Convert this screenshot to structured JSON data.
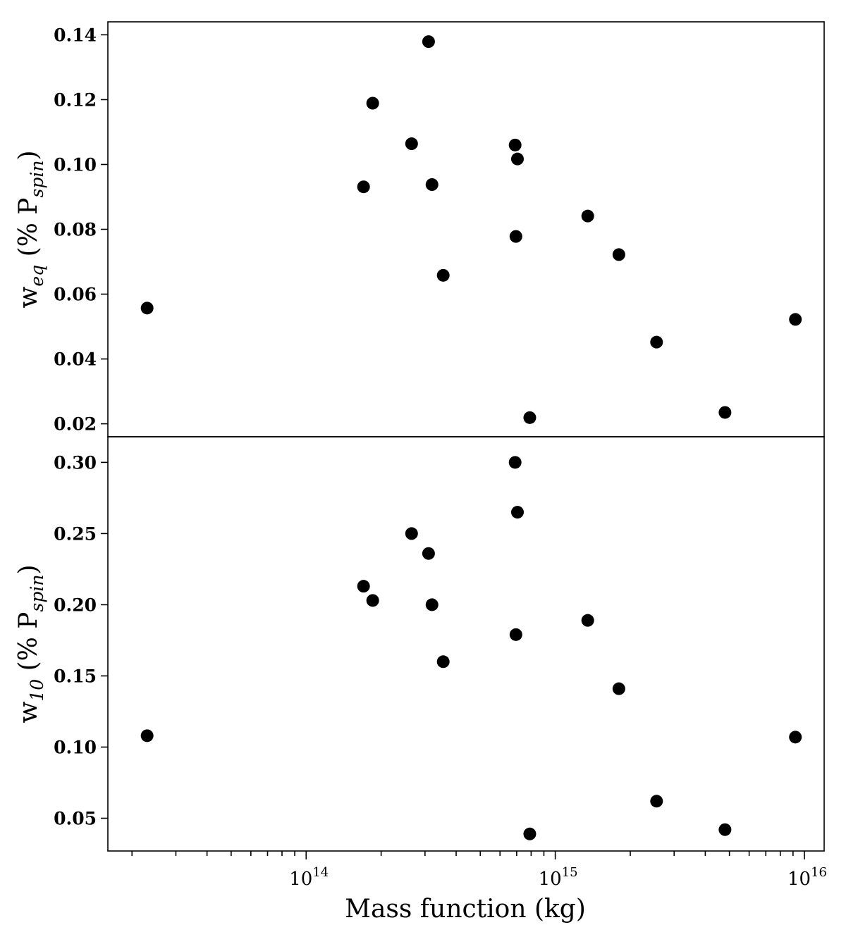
{
  "chart_data": [
    {
      "type": "scatter",
      "panel": "top",
      "title": "",
      "xlabel": "Mass function (kg)",
      "ylabel": {
        "main": "w",
        "sub": "eq",
        "paren_open": " (% P",
        "paren_sub": "spin",
        "paren_close": ")"
      },
      "xscale": "log",
      "xlim": [
        16000000000000.0,
        1.2e+16
      ],
      "ylim": [
        0.016,
        0.144
      ],
      "yticks": [
        0.02,
        0.04,
        0.06,
        0.08,
        0.1,
        0.12,
        0.14
      ],
      "ytick_labels": [
        "0.02",
        "0.04",
        "0.06",
        "0.08",
        "0.10",
        "0.12",
        "0.14"
      ],
      "marker_color": "#000000",
      "grid": false,
      "points": [
        {
          "x": 23000000000000.0,
          "y": 0.0557
        },
        {
          "x": 170000000000000.0,
          "y": 0.0931
        },
        {
          "x": 185000000000000.0,
          "y": 0.1189
        },
        {
          "x": 265000000000000.0,
          "y": 0.1064
        },
        {
          "x": 310000000000000.0,
          "y": 0.1379
        },
        {
          "x": 320000000000000.0,
          "y": 0.0938
        },
        {
          "x": 355000000000000.0,
          "y": 0.0658
        },
        {
          "x": 690000000000000.0,
          "y": 0.106
        },
        {
          "x": 705000000000000.0,
          "y": 0.1017
        },
        {
          "x": 695000000000000.0,
          "y": 0.0778
        },
        {
          "x": 790000000000000.0,
          "y": 0.0219
        },
        {
          "x": 1350000000000000.0,
          "y": 0.0841
        },
        {
          "x": 1800000000000000.0,
          "y": 0.0722
        },
        {
          "x": 2550000000000000.0,
          "y": 0.0452
        },
        {
          "x": 4800000000000000.0,
          "y": 0.0235
        },
        {
          "x": 9200000000000000.0,
          "y": 0.0522
        }
      ]
    },
    {
      "type": "scatter",
      "panel": "bottom",
      "title": "",
      "xlabel": "Mass function (kg)",
      "ylabel": {
        "main": "w",
        "sub": "10",
        "paren_open": " (% P",
        "paren_sub": "spin",
        "paren_close": ")"
      },
      "xscale": "log",
      "xlim": [
        16000000000000.0,
        1.2e+16
      ],
      "ylim": [
        0.027,
        0.318
      ],
      "yticks": [
        0.05,
        0.1,
        0.15,
        0.2,
        0.25,
        0.3
      ],
      "ytick_labels": [
        "0.05",
        "0.10",
        "0.15",
        "0.20",
        "0.25",
        "0.30"
      ],
      "xticks_major": [
        100000000000000.0,
        1000000000000000.0,
        1e+16
      ],
      "xtick_labels": [
        {
          "base": "10",
          "exp": "14"
        },
        {
          "base": "10",
          "exp": "15"
        },
        {
          "base": "10",
          "exp": "16"
        }
      ],
      "marker_color": "#000000",
      "grid": false,
      "points": [
        {
          "x": 23000000000000.0,
          "y": 0.108
        },
        {
          "x": 170000000000000.0,
          "y": 0.213
        },
        {
          "x": 185000000000000.0,
          "y": 0.203
        },
        {
          "x": 265000000000000.0,
          "y": 0.25
        },
        {
          "x": 310000000000000.0,
          "y": 0.236
        },
        {
          "x": 320000000000000.0,
          "y": 0.2
        },
        {
          "x": 355000000000000.0,
          "y": 0.16
        },
        {
          "x": 690000000000000.0,
          "y": 0.3
        },
        {
          "x": 705000000000000.0,
          "y": 0.265
        },
        {
          "x": 695000000000000.0,
          "y": 0.179
        },
        {
          "x": 790000000000000.0,
          "y": 0.039
        },
        {
          "x": 1350000000000000.0,
          "y": 0.189
        },
        {
          "x": 1800000000000000.0,
          "y": 0.141
        },
        {
          "x": 2550000000000000.0,
          "y": 0.062
        },
        {
          "x": 4800000000000000.0,
          "y": 0.042
        },
        {
          "x": 9200000000000000.0,
          "y": 0.107
        }
      ]
    }
  ]
}
